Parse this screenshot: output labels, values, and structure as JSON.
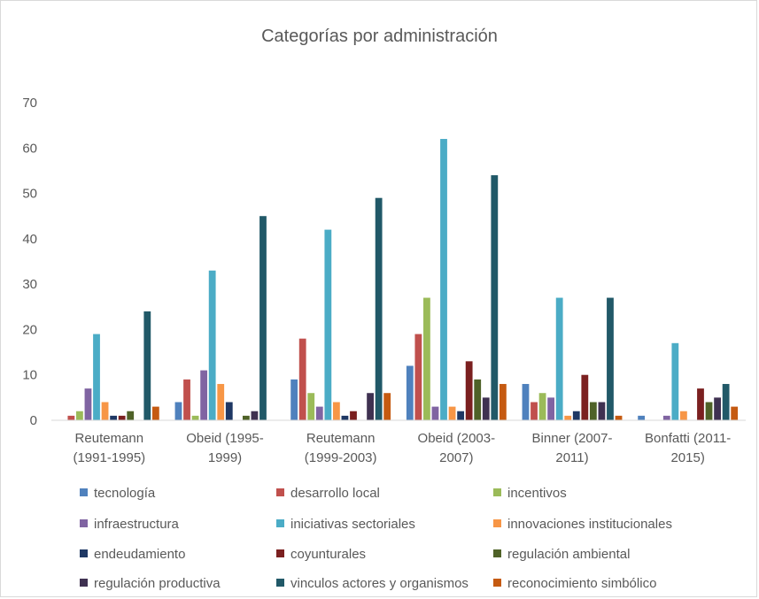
{
  "chart_data": {
    "type": "bar",
    "title": "Categorías por administración",
    "xlabel": "",
    "ylabel": "",
    "ylim": [
      0,
      70
    ],
    "yticks": [
      0,
      10,
      20,
      30,
      40,
      50,
      60,
      70
    ],
    "grid": false,
    "legend_position": "bottom",
    "categories": [
      [
        "Reutemann",
        "(1991-1995)"
      ],
      [
        "Obeid (1995-",
        "1999)"
      ],
      [
        "Reutemann",
        "(1999-2003)"
      ],
      [
        "Obeid (2003-",
        "2007)"
      ],
      [
        "Binner (2007-",
        "2011)"
      ],
      [
        "Bonfatti (2011-",
        "2015)"
      ]
    ],
    "series": [
      {
        "name": "tecnología",
        "color": "#4f81bd",
        "values": [
          0,
          4,
          9,
          12,
          8,
          1
        ]
      },
      {
        "name": "desarrollo local",
        "color": "#c0504d",
        "values": [
          1,
          9,
          18,
          19,
          4,
          0
        ]
      },
      {
        "name": "incentivos",
        "color": "#9bbb59",
        "values": [
          2,
          1,
          6,
          27,
          6,
          0
        ]
      },
      {
        "name": "infraestructura",
        "color": "#8064a2",
        "values": [
          7,
          11,
          3,
          3,
          5,
          1
        ]
      },
      {
        "name": "iniciativas sectoriales",
        "color": "#4bacc6",
        "values": [
          19,
          33,
          42,
          62,
          27,
          17
        ]
      },
      {
        "name": "innovaciones institucionales",
        "color": "#f79646",
        "values": [
          4,
          8,
          4,
          3,
          1,
          2
        ]
      },
      {
        "name": "endeudamiento",
        "color": "#1f3864",
        "values": [
          1,
          4,
          1,
          2,
          2,
          0
        ]
      },
      {
        "name": "coyunturales",
        "color": "#7b2020",
        "values": [
          1,
          0,
          2,
          13,
          10,
          7
        ]
      },
      {
        "name": "regulación ambiental",
        "color": "#4f6228",
        "values": [
          2,
          1,
          0,
          9,
          4,
          4
        ]
      },
      {
        "name": "regulación productiva",
        "color": "#3f3151",
        "values": [
          0,
          2,
          6,
          5,
          4,
          5
        ]
      },
      {
        "name": "vinculos actores y organismos",
        "color": "#215968",
        "values": [
          24,
          45,
          49,
          54,
          27,
          8
        ]
      },
      {
        "name": "reconocimiento simbólico",
        "color": "#c55a11",
        "values": [
          3,
          0,
          6,
          8,
          1,
          3
        ]
      }
    ]
  }
}
